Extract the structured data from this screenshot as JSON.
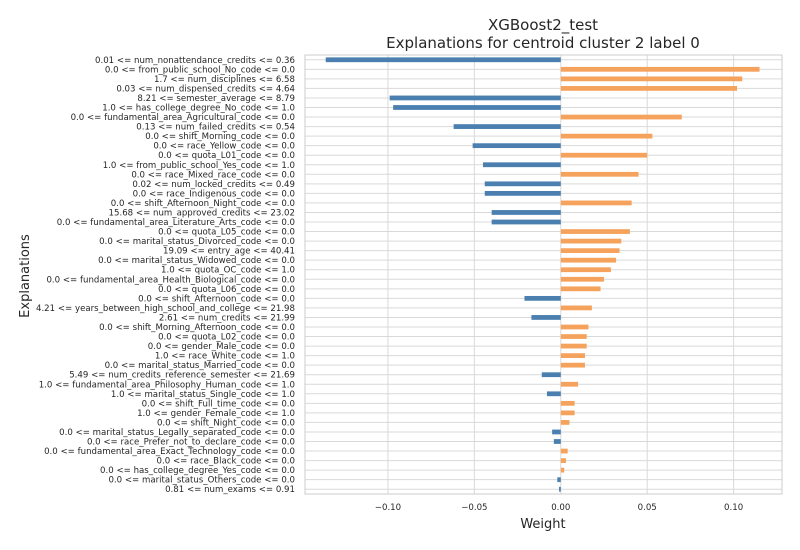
{
  "chart_data": {
    "type": "bar",
    "orientation": "horizontal",
    "title": "XGBoost2_test",
    "subtitle": "Explanations for centroid cluster 2 label 0",
    "xlabel": "Weight",
    "ylabel": "Explanations",
    "xlim": [
      -0.148,
      0.128
    ],
    "xticks": [
      -0.1,
      -0.05,
      0.0,
      0.05,
      0.1
    ],
    "xtick_labels": [
      "−0.10",
      "−0.05",
      "0.00",
      "0.05",
      "0.10"
    ],
    "grid": true,
    "colors": {
      "positive": "#f5a25d",
      "negative": "#4a7fb0"
    },
    "categories": [
      "0.01 <= num_nonattendance_credits <= 0.36",
      "0.0 <= from_public_school_No_code <= 0.0",
      "1.7 <= num_disciplines <= 6.58",
      "0.03 <= num_dispensed_credits <= 4.64",
      "8.21 <= semester_average <= 8.79",
      "1.0 <= has_college_degree_No_code <= 1.0",
      "0.0 <= fundamental_area_Agricultural_code <= 0.0",
      "0.13 <= num_failed_credits <= 0.54",
      "0.0 <= shift_Morning_code <= 0.0",
      "0.0 <= race_Yellow_code <= 0.0",
      "0.0 <= quota_L01_code <= 0.0",
      "1.0 <= from_public_school_Yes_code <= 1.0",
      "0.0 <= race_Mixed_race_code <= 0.0",
      "0.02 <= num_locked_credits <= 0.49",
      "0.0 <= race_Indigenous_code <= 0.0",
      "0.0 <= shift_Afternoon_Night_code <= 0.0",
      "15.68 <= num_approved_credits <= 23.02",
      "0.0 <= fundamental_area_Literature_Arts_code <= 0.0",
      "0.0 <= quota_L05_code <= 0.0",
      "0.0 <= marital_status_Divorced_code <= 0.0",
      "19.09 <= entry_age <= 40.41",
      "0.0 <= marital_status_Widowed_code <= 0.0",
      "1.0 <= quota_OC_code <= 1.0",
      "0.0 <= fundamental_area_Health_Biological_code <= 0.0",
      "0.0 <= quota_L06_code <= 0.0",
      "0.0 <= shift_Afternoon_code <= 0.0",
      "4.21 <= years_between_high_school_and_college <= 21.98",
      "2.61 <= num_credits <= 21.99",
      "0.0 <= shift_Morning_Afternoon_code <= 0.0",
      "0.0 <= quota_L02_code <= 0.0",
      "0.0 <= gender_Male_code <= 0.0",
      "1.0 <= race_White_code <= 1.0",
      "0.0 <= marital_status_Married_code <= 0.0",
      "5.49 <= num_credits_reference_semester <= 21.69",
      "1.0 <= fundamental_area_Philosophy_Human_code <= 1.0",
      "1.0 <= marital_status_Single_code <= 1.0",
      "0.0 <= shift_Full_time_code <= 0.0",
      "1.0 <= gender_Female_code <= 1.0",
      "0.0 <= shift_Night_code <= 0.0",
      "0.0 <= marital_status_Legally_separated_code <= 0.0",
      "0.0 <= race_Prefer_not_to_declare_code <= 0.0",
      "0.0 <= fundamental_area_Exact_Technology_code <= 0.0",
      "0.0 <= race_Black_code <= 0.0",
      "0.0 <= has_college_degree_Yes_code <= 0.0",
      "0.0 <= marital_status_Others_code <= 0.0",
      "0.81 <= num_exams <= 0.91"
    ],
    "values": [
      -0.136,
      0.115,
      0.105,
      0.102,
      -0.099,
      -0.097,
      0.07,
      -0.062,
      0.053,
      -0.051,
      0.05,
      -0.045,
      0.045,
      -0.044,
      -0.044,
      0.041,
      -0.04,
      -0.04,
      0.04,
      0.035,
      0.034,
      0.032,
      0.029,
      0.025,
      0.023,
      -0.021,
      0.018,
      -0.017,
      0.016,
      0.015,
      0.015,
      0.014,
      0.014,
      -0.011,
      0.01,
      -0.008,
      0.008,
      0.008,
      0.005,
      -0.005,
      -0.004,
      0.004,
      0.003,
      0.002,
      -0.002,
      -0.001
    ]
  }
}
